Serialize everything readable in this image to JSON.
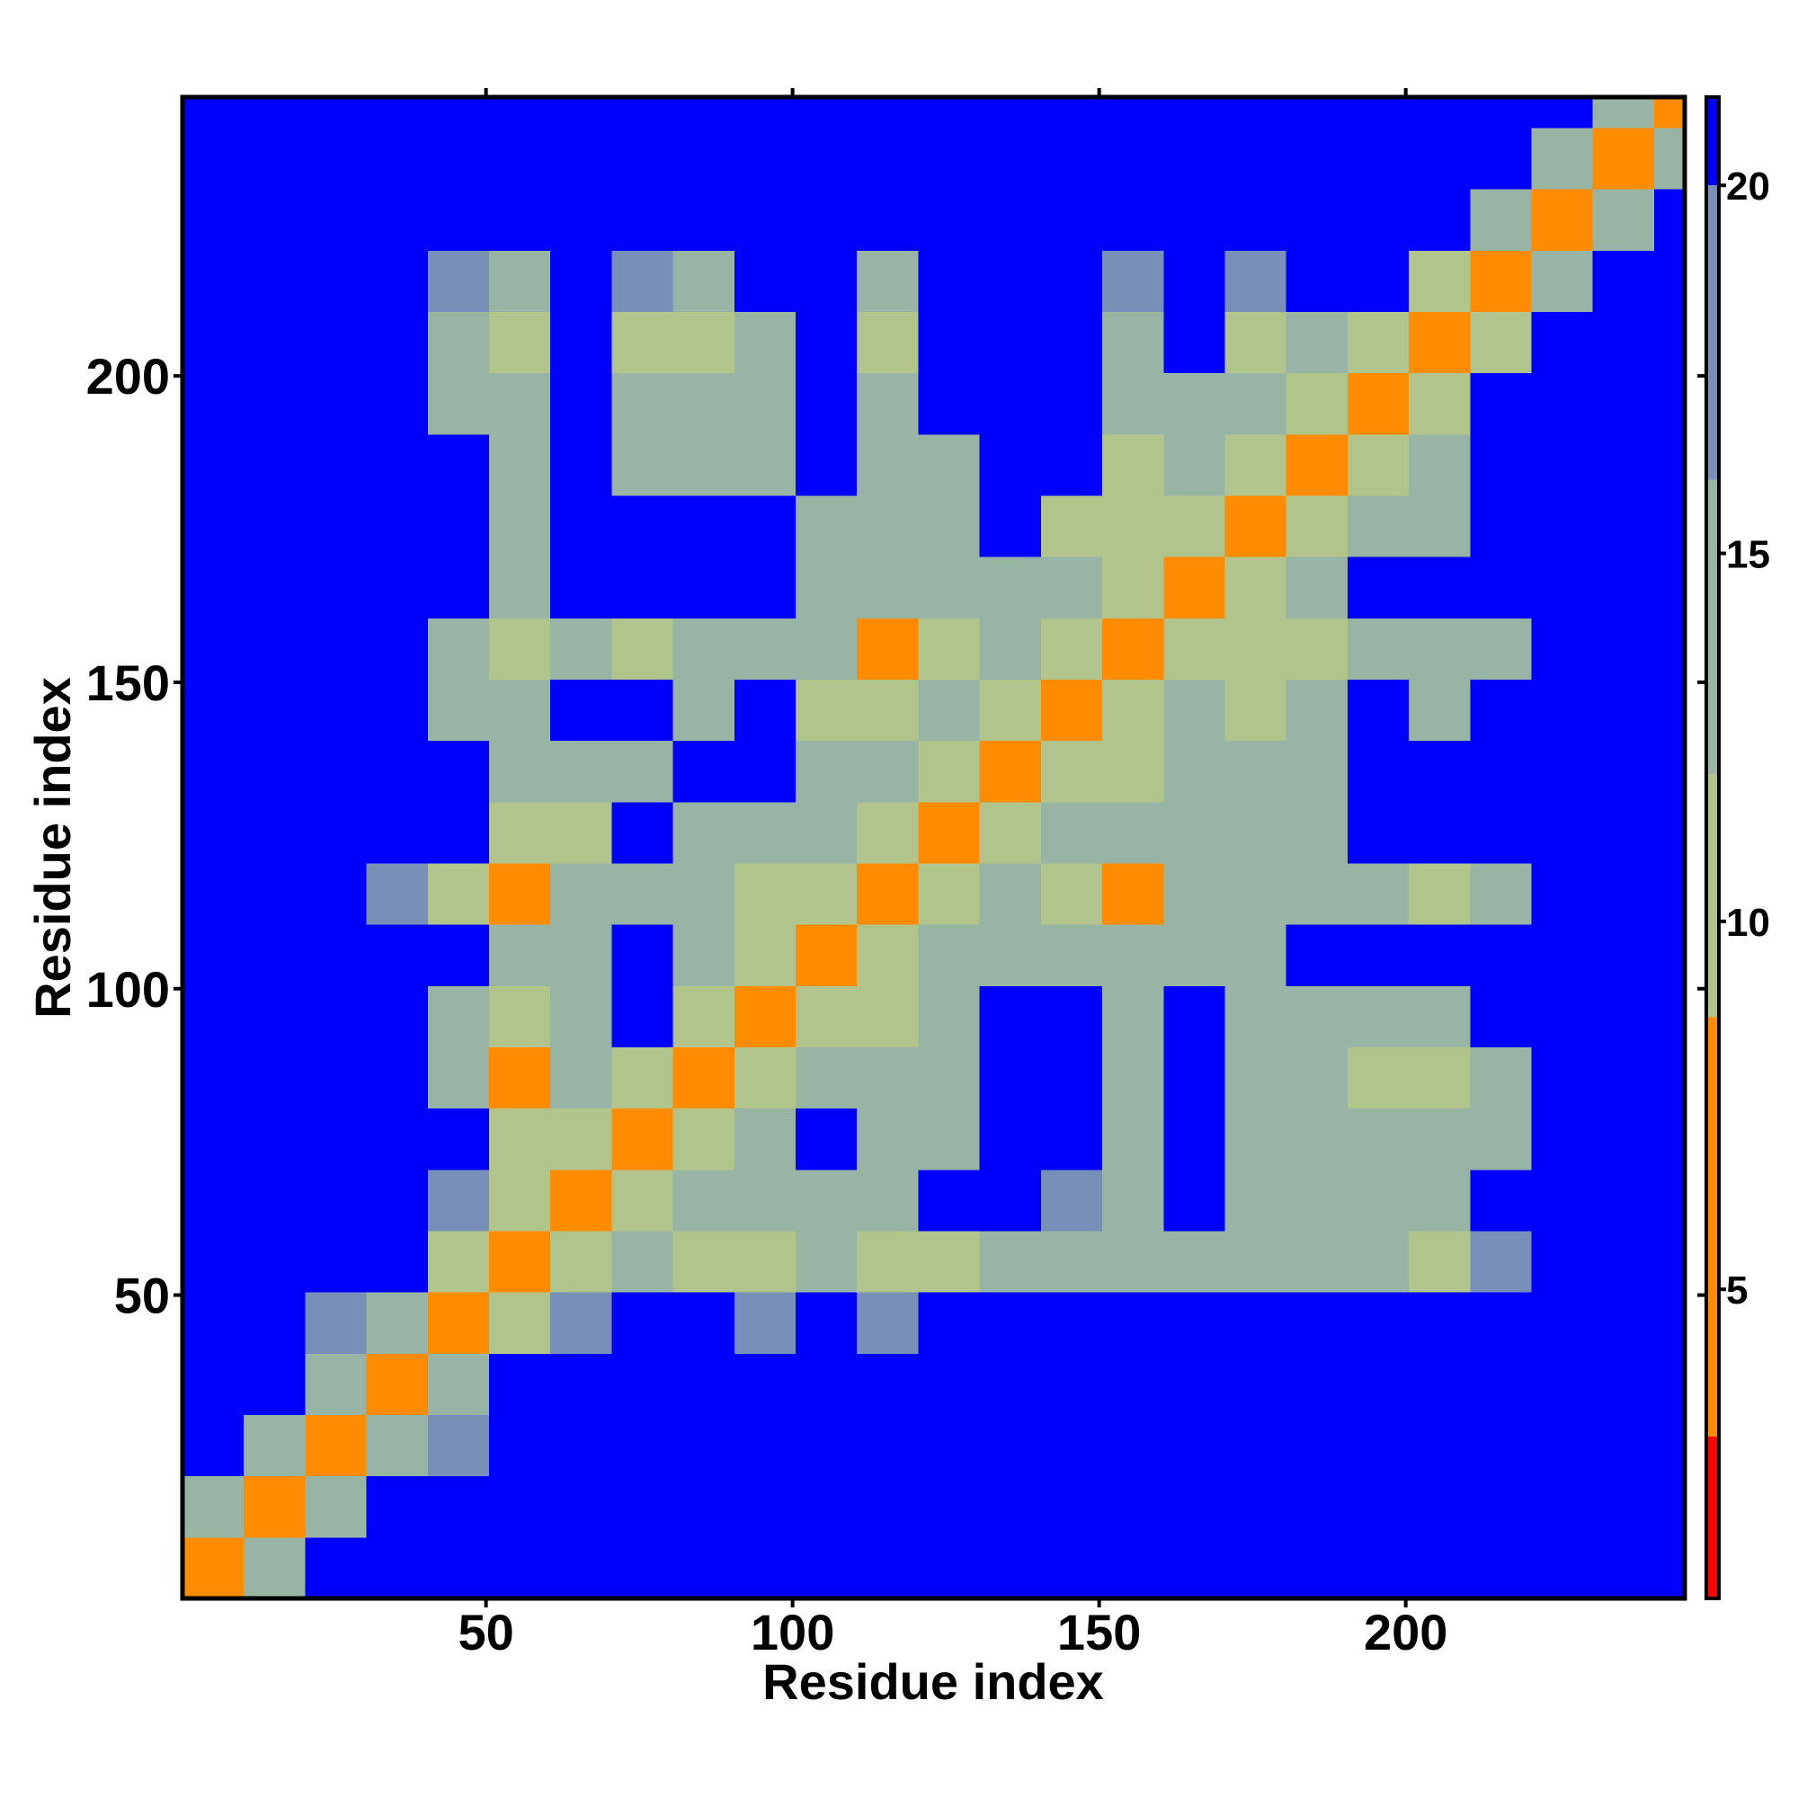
{
  "chart_data": {
    "type": "heatmap",
    "xlabel": "Residue index",
    "ylabel": "Residue index",
    "xlim": [
      0.5,
      245.5
    ],
    "ylim": [
      0.5,
      245.5
    ],
    "xticks": [
      50,
      100,
      150,
      200
    ],
    "yticks": [
      50,
      100,
      150,
      200
    ],
    "xbins": [
      0.5,
      10.5,
      20.5,
      30.5,
      40.5,
      50.5,
      60.5,
      70.5,
      80.5,
      90.5,
      100.5,
      110.5,
      120.5,
      130.5,
      140.5,
      150.5,
      160.5,
      170.5,
      180.5,
      190.5,
      200.5,
      210.5,
      220.5,
      230.5,
      240.5,
      245.5
    ],
    "ybins": [
      0.5,
      10.5,
      20.5,
      30.5,
      40.5,
      50.5,
      60.5,
      70.5,
      80.5,
      90.5,
      100.5,
      110.5,
      120.5,
      130.5,
      140.5,
      150.5,
      160.5,
      170.5,
      180.5,
      190.5,
      200.5,
      210.5,
      220.5,
      230.5,
      240.5,
      245.5
    ],
    "clim": [
      0.8,
      21.2
    ],
    "cticks": [
      5,
      10,
      15,
      20
    ],
    "colorscale": [
      {
        "max": 3,
        "color": "#ff0000"
      },
      {
        "max": 8.7,
        "color": "#ff8c00"
      },
      {
        "max": 12,
        "color": "#b0c48c"
      },
      {
        "max": 16,
        "color": "#98b4a4"
      },
      {
        "max": 20,
        "color": "#7890b8"
      },
      {
        "max": 21.2,
        "color": "#0000ff"
      }
    ],
    "z": [
      [
        4,
        13,
        21,
        21,
        21,
        21,
        21,
        21,
        21,
        21,
        21,
        21,
        21,
        21,
        21,
        21,
        21,
        21,
        21,
        21,
        21,
        21,
        21,
        21,
        21
      ],
      [
        13,
        4,
        13,
        21,
        21,
        21,
        21,
        21,
        21,
        21,
        21,
        21,
        21,
        21,
        21,
        21,
        21,
        21,
        21,
        21,
        21,
        21,
        21,
        21,
        21
      ],
      [
        21,
        13,
        4,
        13,
        18,
        21,
        21,
        21,
        21,
        21,
        21,
        21,
        21,
        21,
        21,
        21,
        21,
        21,
        21,
        21,
        21,
        21,
        21,
        21,
        21
      ],
      [
        21,
        21,
        13,
        4,
        13,
        21,
        21,
        21,
        21,
        21,
        21,
        21,
        21,
        21,
        21,
        21,
        21,
        21,
        21,
        21,
        21,
        21,
        21,
        21,
        21
      ],
      [
        21,
        21,
        18,
        13,
        4,
        12,
        17,
        21,
        21,
        17,
        21,
        17,
        21,
        21,
        21,
        21,
        21,
        21,
        21,
        21,
        21,
        21,
        21,
        21,
        21
      ],
      [
        21,
        21,
        21,
        21,
        12,
        4,
        12,
        13,
        12,
        10,
        14,
        10,
        12,
        16,
        15,
        13,
        16,
        15,
        14,
        16,
        12,
        17,
        21,
        21,
        21
      ],
      [
        21,
        21,
        21,
        21,
        17,
        12,
        4,
        12,
        14,
        14,
        14,
        14,
        21,
        21,
        17,
        15,
        21,
        15,
        15,
        14,
        14,
        21,
        21,
        21,
        21
      ],
      [
        21,
        21,
        21,
        21,
        21,
        12,
        12,
        4,
        12,
        14,
        21,
        13,
        14,
        21,
        21,
        13,
        21,
        13,
        14,
        13,
        13,
        16,
        21,
        21,
        21
      ],
      [
        21,
        21,
        21,
        21,
        13,
        8,
        14,
        12,
        4,
        12,
        14,
        13,
        14,
        21,
        21,
        13,
        21,
        13,
        13,
        12,
        11,
        14,
        21,
        21,
        21
      ],
      [
        21,
        21,
        21,
        21,
        13,
        10,
        13,
        21,
        12,
        4,
        12,
        11,
        13,
        21,
        21,
        14,
        21,
        16,
        14,
        13,
        13,
        21,
        21,
        21,
        21
      ],
      [
        21,
        21,
        21,
        21,
        21,
        13,
        14,
        21,
        14,
        12,
        4,
        12,
        13,
        13,
        13,
        13,
        16,
        16,
        21,
        21,
        21,
        21,
        21,
        21,
        21
      ],
      [
        21,
        21,
        21,
        17,
        11,
        8,
        13,
        14,
        13,
        11,
        12,
        4,
        12,
        13,
        11,
        8,
        14,
        14,
        16,
        14,
        12,
        15,
        21,
        21,
        21
      ],
      [
        21,
        21,
        21,
        21,
        21,
        12,
        12,
        21,
        14,
        14,
        14,
        12,
        4,
        12,
        13,
        14,
        14,
        14,
        15,
        21,
        21,
        21,
        21,
        21,
        21
      ],
      [
        21,
        21,
        21,
        21,
        21,
        14,
        14,
        16,
        21,
        21,
        13,
        13,
        12,
        4,
        12,
        12,
        14,
        13,
        15,
        21,
        21,
        21,
        21,
        21,
        21
      ],
      [
        21,
        21,
        21,
        21,
        14,
        13,
        21,
        21,
        15,
        21,
        12,
        11,
        13,
        12,
        4,
        12,
        13,
        12,
        15,
        21,
        16,
        21,
        21,
        21,
        21
      ],
      [
        21,
        21,
        21,
        21,
        13,
        11,
        13,
        12,
        13,
        15,
        13,
        8,
        10,
        13,
        12,
        4,
        12,
        12,
        11,
        14,
        13,
        15,
        21,
        21,
        21
      ],
      [
        21,
        21,
        21,
        21,
        21,
        15,
        21,
        21,
        21,
        21,
        15,
        14,
        13,
        14,
        13,
        12,
        4,
        12,
        13,
        21,
        21,
        21,
        21,
        21,
        21
      ],
      [
        21,
        21,
        21,
        21,
        21,
        15,
        21,
        21,
        21,
        21,
        15,
        13,
        13,
        21,
        12,
        12,
        12,
        4,
        12,
        14,
        13,
        21,
        21,
        21,
        21
      ],
      [
        21,
        21,
        21,
        21,
        21,
        14,
        21,
        14,
        14,
        15,
        21,
        13,
        14,
        21,
        21,
        10,
        13,
        12,
        4,
        12,
        13,
        21,
        21,
        21,
        21
      ],
      [
        21,
        21,
        21,
        21,
        16,
        14,
        21,
        13,
        13,
        14,
        21,
        14,
        21,
        21,
        21,
        14,
        16,
        13,
        12,
        4,
        12,
        21,
        21,
        21,
        21
      ],
      [
        21,
        21,
        21,
        21,
        13,
        11,
        21,
        12,
        12,
        14,
        21,
        11,
        21,
        21,
        21,
        13,
        21,
        12,
        13,
        12,
        4,
        12,
        21,
        21,
        21
      ],
      [
        21,
        21,
        21,
        21,
        17,
        15,
        21,
        17,
        15,
        21,
        21,
        16,
        21,
        21,
        21,
        17,
        21,
        17,
        21,
        21,
        12,
        4,
        13,
        21,
        21
      ],
      [
        21,
        21,
        21,
        21,
        21,
        21,
        21,
        21,
        21,
        21,
        21,
        21,
        21,
        21,
        21,
        21,
        21,
        21,
        21,
        21,
        21,
        13,
        4,
        13,
        21
      ],
      [
        21,
        21,
        21,
        21,
        21,
        21,
        21,
        21,
        21,
        21,
        21,
        21,
        21,
        21,
        21,
        21,
        21,
        21,
        21,
        21,
        21,
        21,
        13,
        4,
        13
      ],
      [
        21,
        21,
        21,
        21,
        21,
        21,
        21,
        21,
        21,
        21,
        21,
        21,
        21,
        21,
        21,
        21,
        21,
        21,
        21,
        21,
        21,
        21,
        21,
        13,
        4
      ]
    ]
  }
}
